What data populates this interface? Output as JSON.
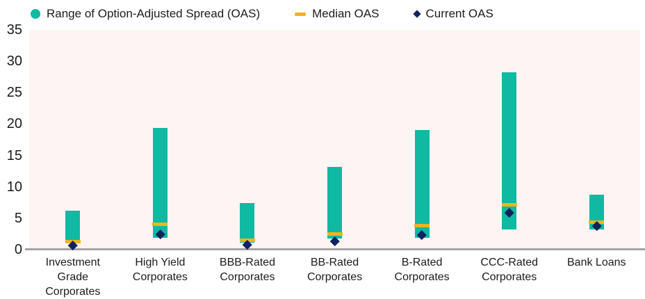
{
  "legend": {
    "items": [
      {
        "label": "Range of Option-Adjusted Spread (OAS)",
        "icon": "circle-icon",
        "color": "#10b9a2"
      },
      {
        "label": "Median OAS",
        "icon": "dash-icon",
        "color": "#f1b41c"
      },
      {
        "label": "Current OAS",
        "icon": "diamond-icon",
        "color": "#13215e"
      }
    ]
  },
  "chart_data": {
    "type": "bar",
    "subtype": "floating-range-bar-with-markers",
    "title": "",
    "xlabel": "",
    "ylabel": "",
    "categories": [
      "Investment Grade Corporates",
      "High Yield Corporates",
      "BBB-Rated Corporates",
      "BB-Rated Corporates",
      "B-Rated Corporates",
      "CCC-Rated Corporates",
      "Bank Loans"
    ],
    "series": [
      {
        "name": "Range of Option-Adjusted Spread (OAS)",
        "type": "range",
        "color": "#10b9a2",
        "low": [
          1.0,
          1.9,
          1.1,
          1.8,
          1.9,
          3.2,
          3.2
        ],
        "high": [
          6.2,
          19.4,
          7.4,
          13.2,
          19.1,
          28.3,
          8.8
        ]
      },
      {
        "name": "Median OAS",
        "type": "tick",
        "color": "#f1b41c",
        "values": [
          1.3,
          4.0,
          1.5,
          2.5,
          3.8,
          7.2,
          4.4
        ]
      },
      {
        "name": "Current OAS",
        "type": "point",
        "marker": "diamond",
        "color": "#13215e",
        "values": [
          0.7,
          2.5,
          0.8,
          1.4,
          2.3,
          5.9,
          3.8
        ]
      }
    ],
    "ylim": [
      0,
      35
    ],
    "yticks": [
      0,
      5,
      10,
      15,
      20,
      25,
      30,
      35
    ],
    "grid": false,
    "legend_position": "top",
    "plot_background": "#fdf4f3",
    "axis_line_color": "#a3a3a3"
  }
}
